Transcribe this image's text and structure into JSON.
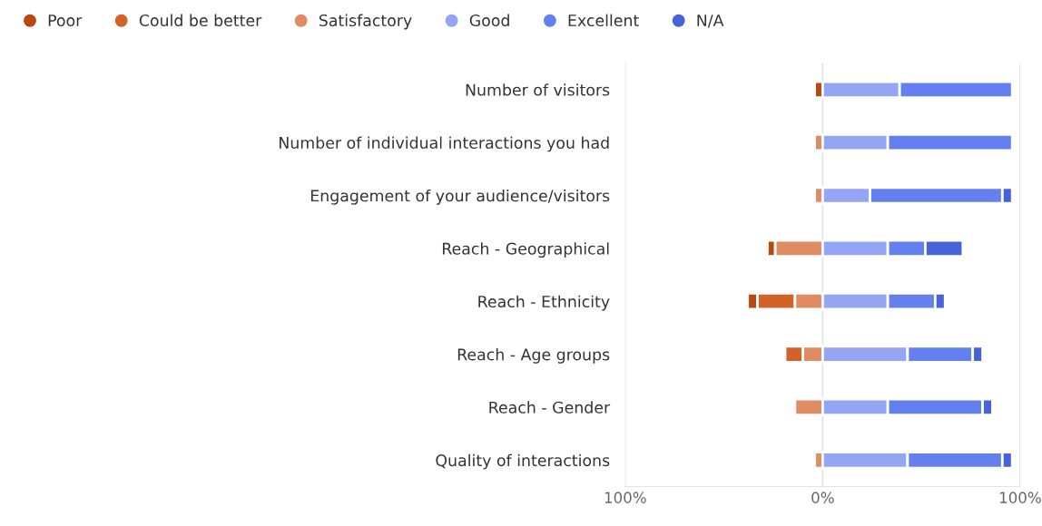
{
  "chart_data": {
    "type": "bar",
    "orientation": "horizontal",
    "legend": "top left",
    "grid": "x",
    "marker": "circle",
    "categories": [
      "Number of visitors",
      "Number of individual interactions you had",
      "Engagement of your audience/visitors",
      "Reach - Geographical",
      "Reach - Ethnicity",
      "Reach - Age groups",
      "Reach - Gender",
      "Quality of interactions"
    ],
    "xlim": [
      -100,
      100
    ],
    "xticks": [
      {
        "value": -100,
        "label": "100%"
      },
      {
        "value": 0,
        "label": "0%"
      },
      {
        "value": 100,
        "label": "100%"
      }
    ],
    "series": [
      {
        "name": "Poor",
        "color": "#b9490f",
        "values": [
          4,
          null,
          null,
          4,
          5,
          null,
          null,
          null
        ],
        "base": [
          -4,
          null,
          null,
          -28,
          -38,
          null,
          null,
          null
        ]
      },
      {
        "name": "Could be better",
        "color": "#d2622a",
        "values": [
          null,
          null,
          null,
          null,
          19,
          9,
          null,
          null
        ],
        "base": [
          null,
          null,
          null,
          null,
          -33,
          -19,
          null,
          null
        ]
      },
      {
        "name": "Satisfactory",
        "color": "#e08c62",
        "values": [
          null,
          4,
          4,
          24,
          14,
          10,
          14,
          4
        ],
        "base": [
          null,
          -4,
          -4,
          -24,
          -14,
          -10,
          -14,
          -4
        ]
      },
      {
        "name": "Good",
        "color": "#93a5f3",
        "values": [
          39,
          33,
          24,
          33,
          33,
          43,
          33,
          43
        ],
        "base": [
          0,
          0,
          0,
          0,
          0,
          0,
          0,
          0
        ]
      },
      {
        "name": "Excellent",
        "color": "#6480ef",
        "values": [
          57,
          63,
          67,
          19,
          24,
          33,
          48,
          48
        ],
        "base": [
          39,
          33,
          24,
          33,
          33,
          43,
          33,
          43
        ]
      },
      {
        "name": "N/A",
        "color": "#4862d8",
        "values": [
          null,
          null,
          5,
          19,
          5,
          5,
          5,
          5
        ],
        "base": [
          null,
          null,
          91,
          52,
          57,
          76,
          81,
          91
        ]
      }
    ]
  }
}
